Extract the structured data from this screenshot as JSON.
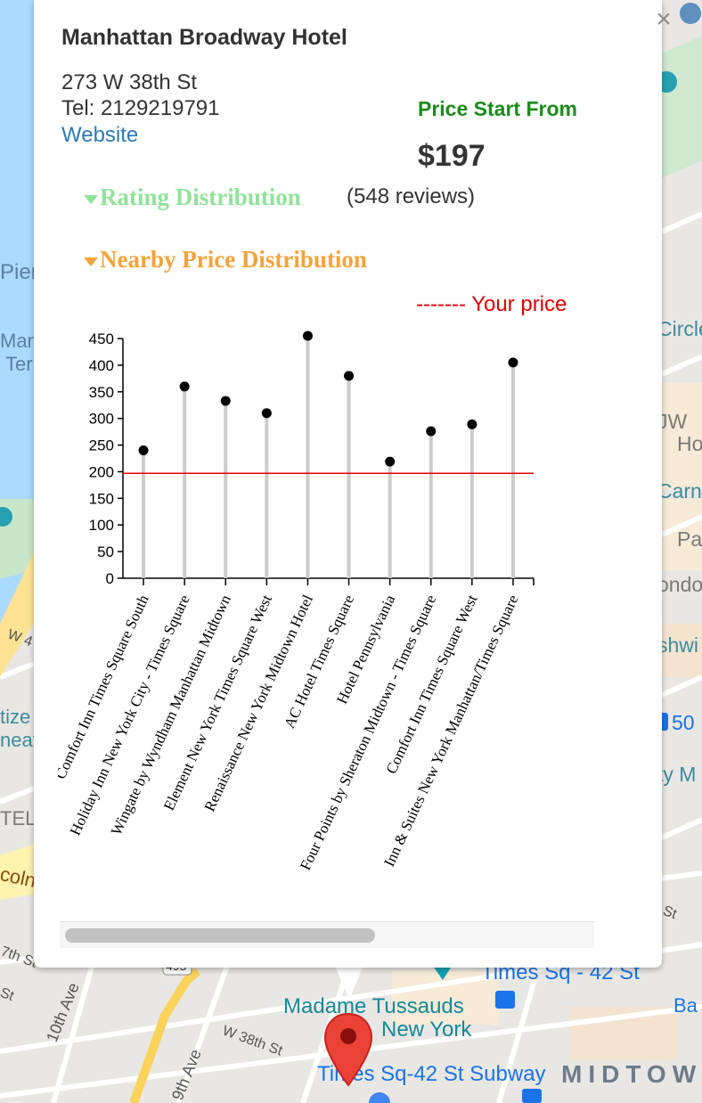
{
  "map": {
    "labels": {
      "piers": "Piers",
      "manh": "Manh",
      "ter": "Ter",
      "circle": "Circle",
      "jw": "JW",
      "ho": "Ho",
      "carn": "Carn",
      "pa": "Pa",
      "ondo": "ondo",
      "shwi": "shwi",
      "fifty": "50",
      "ty_m": "ty M",
      "tize": "tize",
      "neat": "neat",
      "tel": "TEL",
      "coln": "coln",
      "w4": "W 4",
      "w37": "7th St",
      "st": "St",
      "st2": "St",
      "tenth_ave": "10th Ave",
      "ninth_ave": "9th Ave",
      "w38": "W 38th St",
      "route": "495",
      "times_sq": "Times Sq - 42 St",
      "ba": "Ba",
      "madame_1": "Madame Tussauds",
      "madame_2": "New York",
      "subway": "Times Sq-42 St Subway",
      "midtown": "MIDTOW"
    }
  },
  "popup": {
    "close_symbol": "×",
    "hotel_name": "Manhattan Broadway Hotel",
    "address": "273 W 38th St",
    "tel": "Tel: 2129219791",
    "website": "Website",
    "price_label": "Price Start From",
    "price_value": "$197",
    "rating_toggle": "Rating Distribution",
    "reviews": "(548 reviews)",
    "price_dist_toggle": "Nearby Price Distribution",
    "your_price_legend": "------- Your price"
  },
  "chart_data": {
    "type": "lollipop",
    "categories": [
      "Comfort Inn Times Square South",
      "Holiday Inn New York City - Times Square",
      "Wingate by Wyndham Manhattan Midtown",
      "Element New York Times Square West",
      "Renaissance New York Midtown Hotel",
      "AC Hotel Times Square",
      "Hotel Pennsylvania",
      "Four Points by Sheraton Midtown - Times Square",
      "Comfort Inn Times Square West",
      "Inn & Suites New York Manhattan/Times Square"
    ],
    "values": [
      240,
      360,
      333,
      310,
      455,
      380,
      219,
      276,
      289,
      405
    ],
    "reference_line": 197,
    "ylim": [
      0,
      450
    ],
    "yticks": [
      "0",
      "50",
      "100",
      "150",
      "200",
      "250",
      "300",
      "350",
      "400",
      "450"
    ],
    "colors": {
      "stem": "#cccccc",
      "dot": "#000000",
      "reference": "#e00000"
    }
  }
}
